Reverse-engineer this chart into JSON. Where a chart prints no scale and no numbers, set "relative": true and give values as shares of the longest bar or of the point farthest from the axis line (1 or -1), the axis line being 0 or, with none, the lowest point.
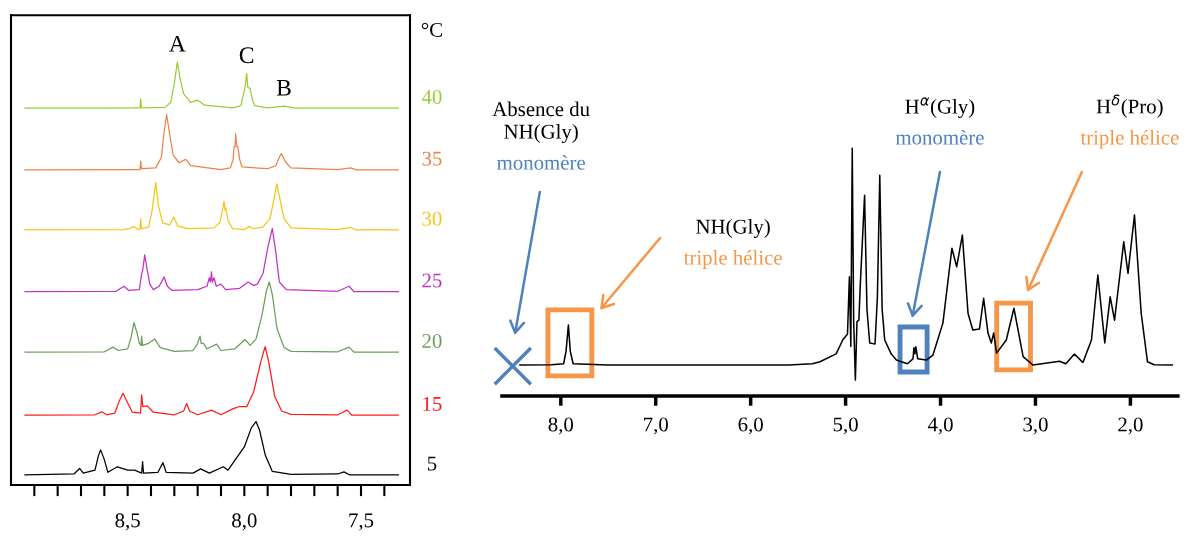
{
  "chart_data": [
    {
      "type": "line",
      "relative": true,
      "tick_labels": "x",
      "legend_title": "°C",
      "xlim": [
        9.0,
        7.29
      ],
      "xticks": [
        {
          "value": 8.9,
          "label": null
        },
        {
          "value": 8.8,
          "label": null
        },
        {
          "value": 8.7,
          "label": null
        },
        {
          "value": 8.6,
          "label": null
        },
        {
          "value": 8.5,
          "label": "8,5"
        },
        {
          "value": 8.4,
          "label": null
        },
        {
          "value": 8.3,
          "label": null
        },
        {
          "value": 8.2,
          "label": null
        },
        {
          "value": 8.1,
          "label": null
        },
        {
          "value": 8.0,
          "label": "8,0"
        },
        {
          "value": 7.9,
          "label": null
        },
        {
          "value": 7.8,
          "label": null
        },
        {
          "value": 7.7,
          "label": null
        },
        {
          "value": 7.6,
          "label": null
        },
        {
          "value": 7.5,
          "label": "7,5"
        },
        {
          "value": 7.4,
          "label": null
        }
      ],
      "series": [
        {
          "name": "40",
          "color": "#9acd32",
          "x": [
            8.94,
            8.6,
            8.455,
            8.447,
            8.444,
            8.441,
            8.34,
            8.315,
            8.3,
            8.287,
            8.275,
            8.26,
            8.23,
            8.2,
            8.17,
            8.05,
            8.015,
            8.005,
            7.997,
            7.99,
            7.985,
            7.975,
            7.965,
            7.955,
            7.9,
            7.83,
            7.78,
            7.34
          ],
          "values": [
            0.891,
            0.891,
            0.892,
            0.892,
            0.913,
            0.892,
            0.893,
            0.905,
            0.95,
            1.0,
            0.96,
            0.925,
            0.905,
            0.91,
            0.898,
            0.892,
            0.897,
            0.92,
            0.94,
            0.973,
            0.94,
            0.938,
            0.91,
            0.897,
            0.892,
            0.896,
            0.891,
            0.891
          ]
        },
        {
          "name": "35",
          "color": "#f0804a",
          "x": [
            8.94,
            8.46,
            8.447,
            8.444,
            8.441,
            8.38,
            8.355,
            8.345,
            8.333,
            8.32,
            8.305,
            8.28,
            8.251,
            8.23,
            8.1,
            8.06,
            8.048,
            8.044,
            8.04,
            8.037,
            8.032,
            8.028,
            8.02,
            8.01,
            7.9,
            7.865,
            7.85,
            7.841,
            7.825,
            7.8,
            7.6,
            7.544,
            7.52,
            7.34
          ],
          "values": [
            0.745,
            0.746,
            0.746,
            0.766,
            0.748,
            0.75,
            0.775,
            0.83,
            0.876,
            0.83,
            0.78,
            0.762,
            0.77,
            0.755,
            0.746,
            0.75,
            0.77,
            0.8,
            0.8,
            0.83,
            0.8,
            0.8,
            0.77,
            0.752,
            0.748,
            0.755,
            0.775,
            0.784,
            0.765,
            0.75,
            0.746,
            0.75,
            0.745,
            0.745
          ]
        },
        {
          "name": "30",
          "color": "#f5c518",
          "x": [
            8.94,
            8.52,
            8.49,
            8.474,
            8.455,
            8.447,
            8.444,
            8.441,
            8.41,
            8.395,
            8.38,
            8.368,
            8.35,
            8.32,
            8.302,
            8.285,
            8.24,
            8.13,
            8.105,
            8.095,
            8.087,
            8.083,
            8.079,
            8.07,
            8.05,
            8.0,
            7.98,
            7.96,
            7.92,
            7.89,
            7.875,
            7.861,
            7.845,
            7.83,
            7.8,
            7.6,
            7.544,
            7.52,
            7.34
          ],
          "values": [
            0.603,
            0.604,
            0.607,
            0.611,
            0.604,
            0.606,
            0.629,
            0.606,
            0.61,
            0.65,
            0.715,
            0.66,
            0.62,
            0.615,
            0.633,
            0.612,
            0.606,
            0.608,
            0.62,
            0.645,
            0.671,
            0.65,
            0.655,
            0.625,
            0.606,
            0.604,
            0.611,
            0.606,
            0.61,
            0.63,
            0.67,
            0.712,
            0.67,
            0.63,
            0.608,
            0.604,
            0.609,
            0.603,
            0.603
          ]
        },
        {
          "name": "25",
          "color": "#c431c4",
          "x": [
            8.94,
            8.55,
            8.516,
            8.495,
            8.45,
            8.44,
            8.435,
            8.427,
            8.42,
            8.405,
            8.39,
            8.365,
            8.344,
            8.33,
            8.31,
            8.2,
            8.16,
            8.15,
            8.145,
            8.141,
            8.137,
            8.13,
            8.12,
            8.101,
            8.08,
            8.02,
            7.984,
            7.96,
            7.944,
            7.92,
            7.9,
            7.88,
            7.865,
            7.85,
            7.82,
            7.6,
            7.551,
            7.53,
            7.34
          ],
          "values": [
            0.457,
            0.458,
            0.47,
            0.46,
            0.462,
            0.5,
            0.51,
            0.544,
            0.52,
            0.475,
            0.462,
            0.47,
            0.492,
            0.47,
            0.46,
            0.462,
            0.47,
            0.49,
            0.48,
            0.504,
            0.48,
            0.49,
            0.47,
            0.475,
            0.462,
            0.465,
            0.48,
            0.472,
            0.475,
            0.5,
            0.56,
            0.607,
            0.55,
            0.48,
            0.462,
            0.458,
            0.47,
            0.457,
            0.457
          ]
        },
        {
          "name": "20",
          "color": "#6a9f5a",
          "x": [
            8.94,
            8.6,
            8.563,
            8.54,
            8.5,
            8.485,
            8.473,
            8.46,
            8.45,
            8.443,
            8.44,
            8.437,
            8.41,
            8.384,
            8.36,
            8.3,
            8.22,
            8.2,
            8.19,
            8.185,
            8.175,
            8.16,
            8.119,
            8.1,
            8.04,
            7.997,
            7.975,
            7.95,
            7.925,
            7.905,
            7.893,
            7.88,
            7.86,
            7.83,
            7.8,
            7.6,
            7.551,
            7.53,
            7.34
          ],
          "values": [
            0.314,
            0.315,
            0.326,
            0.318,
            0.322,
            0.35,
            0.384,
            0.36,
            0.335,
            0.33,
            0.352,
            0.33,
            0.335,
            0.345,
            0.325,
            0.316,
            0.318,
            0.335,
            0.352,
            0.335,
            0.335,
            0.322,
            0.333,
            0.318,
            0.322,
            0.344,
            0.33,
            0.345,
            0.4,
            0.46,
            0.48,
            0.45,
            0.37,
            0.325,
            0.316,
            0.315,
            0.326,
            0.314,
            0.314
          ]
        },
        {
          "name": "15",
          "color": "#ff1a1a",
          "x": [
            8.94,
            8.64,
            8.611,
            8.59,
            8.555,
            8.535,
            8.52,
            8.505,
            8.48,
            8.445,
            8.44,
            8.435,
            8.416,
            8.39,
            8.3,
            8.26,
            8.247,
            8.235,
            8.2,
            8.141,
            8.1,
            8.05,
            8.024,
            7.99,
            7.96,
            7.93,
            7.911,
            7.895,
            7.87,
            7.84,
            7.8,
            7.6,
            7.559,
            7.54,
            7.34
          ],
          "values": [
            0.165,
            0.166,
            0.173,
            0.166,
            0.17,
            0.2,
            0.217,
            0.2,
            0.172,
            0.17,
            0.213,
            0.185,
            0.187,
            0.172,
            0.166,
            0.175,
            0.193,
            0.175,
            0.166,
            0.177,
            0.166,
            0.18,
            0.185,
            0.185,
            0.22,
            0.29,
            0.327,
            0.29,
            0.21,
            0.175,
            0.167,
            0.166,
            0.177,
            0.165,
            0.165
          ]
        },
        {
          "name": "5",
          "color": "#000000",
          "x": [
            8.94,
            8.73,
            8.706,
            8.69,
            8.64,
            8.625,
            8.616,
            8.6,
            8.585,
            8.544,
            8.5,
            8.47,
            8.44,
            8.436,
            8.432,
            8.37,
            8.349,
            8.335,
            8.22,
            8.187,
            8.15,
            8.09,
            8.07,
            8.04,
            8.0,
            7.97,
            7.95,
            7.935,
            7.91,
            7.88,
            7.8,
            7.6,
            7.573,
            7.55,
            7.34
          ],
          "values": [
            0.024,
            0.026,
            0.039,
            0.028,
            0.035,
            0.07,
            0.083,
            0.06,
            0.03,
            0.043,
            0.035,
            0.035,
            0.028,
            0.055,
            0.028,
            0.03,
            0.053,
            0.03,
            0.028,
            0.038,
            0.028,
            0.043,
            0.035,
            0.059,
            0.09,
            0.135,
            0.15,
            0.13,
            0.07,
            0.032,
            0.025,
            0.026,
            0.031,
            0.024,
            0.024
          ]
        }
      ],
      "annotations": [
        {
          "text": "A",
          "x": 8.287,
          "y": 1.0
        },
        {
          "text": "C",
          "x": 7.99,
          "y": 0.973
        },
        {
          "text": "B",
          "x": 7.83,
          "y": 0.896
        }
      ]
    },
    {
      "type": "line",
      "relative": true,
      "tick_labels": "x",
      "xlim": [
        8.62,
        1.5
      ],
      "xticks": [
        {
          "value": 8,
          "label": "8,0"
        },
        {
          "value": 7,
          "label": "7,0"
        },
        {
          "value": 6,
          "label": "6,0"
        },
        {
          "value": 5,
          "label": "5,0"
        },
        {
          "value": 4,
          "label": "4,0"
        },
        {
          "value": 3,
          "label": "3,0"
        },
        {
          "value": 2,
          "label": "2,0"
        }
      ],
      "series": [
        {
          "color": "#000000",
          "x": [
            8.43,
            8.1,
            7.97,
            7.945,
            7.92,
            7.9,
            7.87,
            7.5,
            5.6,
            5.35,
            5.27,
            5.1,
            5.03,
            4.98,
            4.96,
            4.945,
            4.93,
            4.915,
            4.897,
            4.88,
            4.86,
            4.845,
            4.8,
            4.775,
            4.746,
            4.69,
            4.665,
            4.64,
            4.615,
            4.588,
            4.52,
            4.465,
            4.35,
            4.29,
            4.28,
            4.27,
            4.26,
            4.24,
            4.15,
            4.08,
            3.975,
            3.88,
            3.83,
            3.77,
            3.71,
            3.66,
            3.59,
            3.546,
            3.5,
            3.465,
            3.44,
            3.41,
            3.307,
            3.227,
            3.13,
            3.027,
            2.746,
            2.68,
            2.59,
            2.5,
            2.41,
            2.343,
            2.27,
            2.213,
            2.167,
            2.07,
            2.025,
            1.957,
            1.886,
            1.82,
            1.75,
            1.56
          ],
          "values": [
            0.125,
            0.126,
            0.13,
            0.18,
            0.286,
            0.18,
            0.13,
            0.125,
            0.125,
            0.13,
            0.138,
            0.17,
            0.226,
            0.25,
            0.481,
            0.2,
            1.0,
            0.3,
            0.065,
            0.3,
            0.306,
            0.45,
            0.81,
            0.35,
            0.214,
            0.21,
            0.4,
            0.891,
            0.35,
            0.226,
            0.17,
            0.145,
            0.13,
            0.15,
            0.195,
            0.17,
            0.199,
            0.15,
            0.145,
            0.165,
            0.294,
            0.596,
            0.521,
            0.649,
            0.333,
            0.266,
            0.27,
            0.394,
            0.254,
            0.214,
            0.254,
            0.173,
            0.226,
            0.354,
            0.159,
            0.125,
            0.14,
            0.13,
            0.169,
            0.135,
            0.226,
            0.488,
            0.214,
            0.4,
            0.306,
            0.622,
            0.495,
            0.73,
            0.333,
            0.138,
            0.126,
            0.125
          ]
        }
      ],
      "annotations": [
        "Absence du\nNH(Gly)",
        "monomère",
        "NH(Gly)",
        "triple hélice",
        "H$^{α}$(Gly)",
        "monomère",
        "H$^{δ}$(Pro)",
        "triple hélice"
      ]
    }
  ]
}
